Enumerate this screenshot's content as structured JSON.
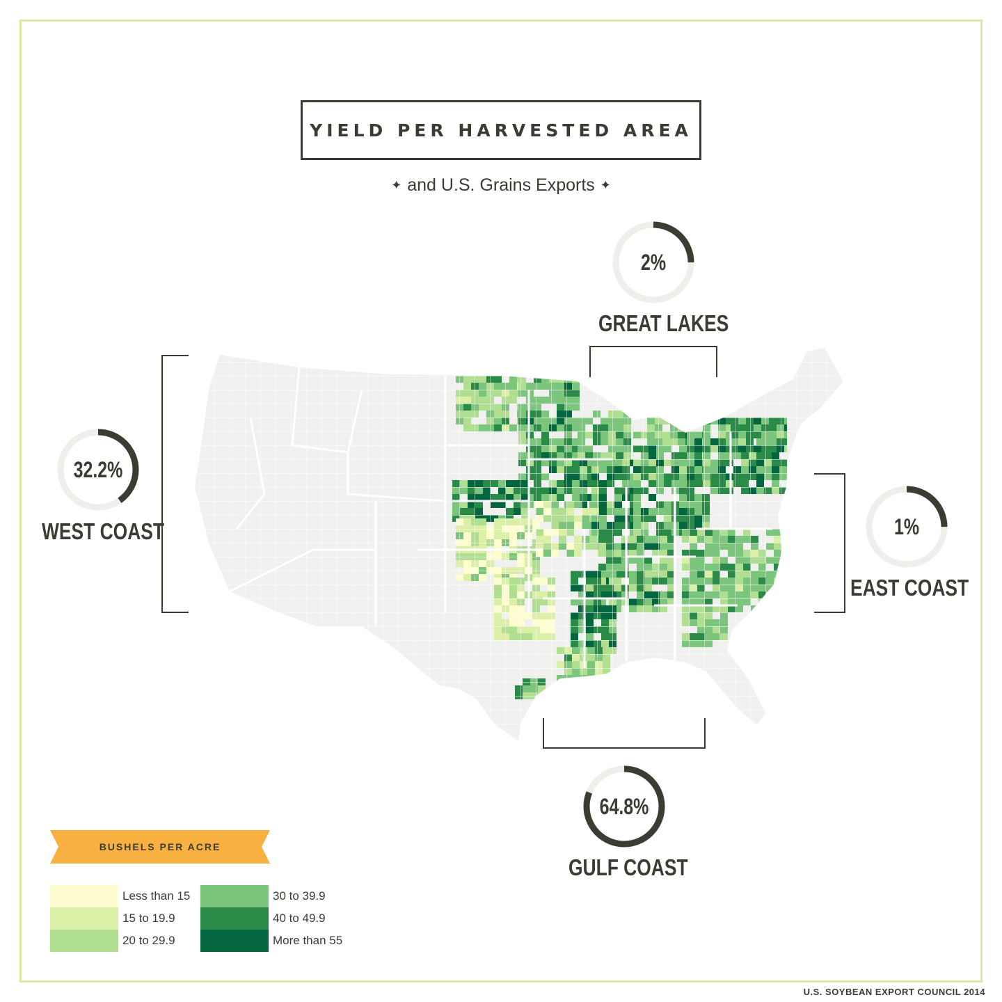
{
  "title": "YIELD PER HARVESTED AREA",
  "subtitle": "and U.S. Grains Exports",
  "credit": "U.S. SOYBEAN EXPORT COUNCIL 2014",
  "regions": [
    {
      "id": "great-lakes",
      "label": "GREAT LAKES",
      "percent_label": "2%",
      "value": 2
    },
    {
      "id": "west-coast",
      "label": "WEST COAST",
      "percent_label": "32.2%",
      "value": 32.2
    },
    {
      "id": "east-coast",
      "label": "EAST COAST",
      "percent_label": "1%",
      "value": 1
    },
    {
      "id": "gulf-coast",
      "label": "GULF COAST",
      "percent_label": "64.8%",
      "value": 64.8
    }
  ],
  "legend": {
    "title": "BUSHELS PER ACRE",
    "items": [
      {
        "label": "Less than 15",
        "color": "#fdfdd0"
      },
      {
        "label": "15 to 19.9",
        "color": "#dcefa6"
      },
      {
        "label": "20 to 29.9",
        "color": "#b0df92"
      },
      {
        "label": "30 to 39.9",
        "color": "#7cc57c"
      },
      {
        "label": "40 to 49.9",
        "color": "#2a8a48"
      },
      {
        "label": "More than 55",
        "color": "#03663e"
      }
    ]
  },
  "colors": {
    "ring_track": "#eeeeeb",
    "ring_fill": "#3d3c33",
    "land": "#f0f0ef",
    "banner": "#f8b040",
    "frame": "#dce9a6"
  }
}
